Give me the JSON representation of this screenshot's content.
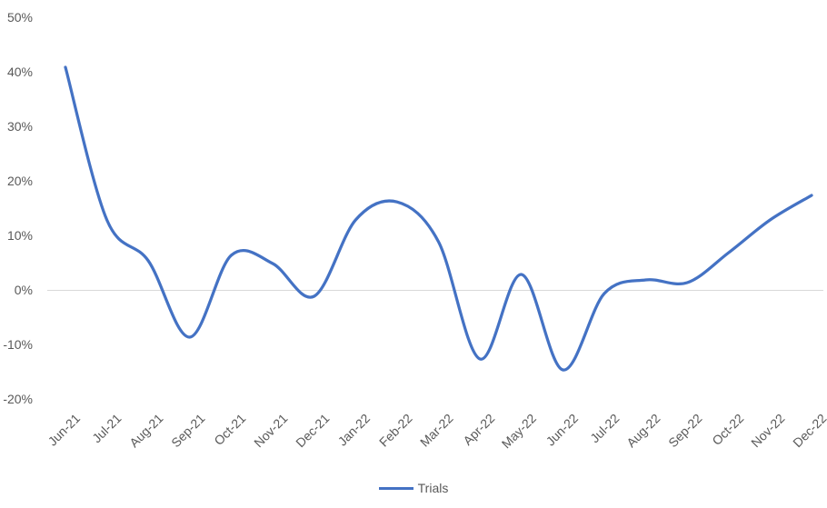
{
  "chart_data": {
    "type": "line",
    "title": "",
    "categories": [
      "Jun-21",
      "Jul-21",
      "Aug-21",
      "Sep-21",
      "Oct-21",
      "Nov-21",
      "Dec-21",
      "Jan-22",
      "Feb-22",
      "Mar-22",
      "Apr-22",
      "May-22",
      "Jun-22",
      "Jul-22",
      "Aug-22",
      "Sep-22",
      "Oct-22",
      "Nov-22",
      "Dec-22"
    ],
    "series": [
      {
        "name": "Trials",
        "values": [
          41,
          13,
          5.5,
          -8.5,
          6.5,
          5,
          -1,
          13,
          16.3,
          9,
          -12.5,
          3,
          -14.5,
          -0.5,
          2,
          1.5,
          7,
          13,
          17.5
        ]
      }
    ],
    "y_ticks": [
      "50%",
      "40%",
      "30%",
      "20%",
      "10%",
      "0%",
      "-10%",
      "-20%"
    ],
    "ylim": [
      -20,
      50
    ],
    "xlabel": "",
    "ylabel": "",
    "grid": "zero-line-only",
    "smooth": true,
    "legend_position": "bottom",
    "colors": {
      "line": "#4472C4",
      "axis_text": "#595959",
      "gridline": "#D9D9D9",
      "background": "#FFFFFF"
    }
  },
  "legend": {
    "label": "Trials"
  }
}
